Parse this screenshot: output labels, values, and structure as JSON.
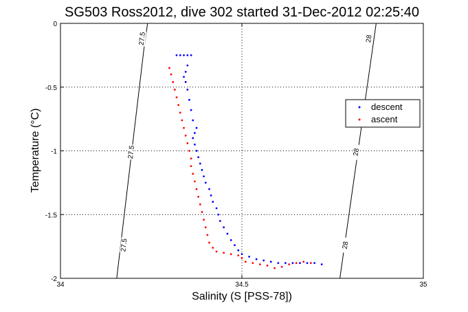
{
  "chart_data": {
    "type": "scatter",
    "title": "SG503 Ross2012, dive 302 started 31-Dec-2012 02:25:40",
    "xlabel": "Salinity (S [PSS-78])",
    "ylabel": "Temperature (°C)",
    "xlim": [
      34,
      35
    ],
    "ylim": [
      -2,
      0
    ],
    "xticks": [
      34,
      34.5,
      35
    ],
    "xtick_labels": [
      "34",
      "34.5",
      "35"
    ],
    "yticks": [
      0,
      -0.5,
      -1,
      -1.5,
      -2
    ],
    "ytick_labels": [
      "0",
      "-0.5",
      "-1",
      "-1.5",
      "-2"
    ],
    "grid": true,
    "legend_position": "right",
    "series": [
      {
        "name": "descent",
        "color": "#0000ff",
        "points": [
          [
            34.32,
            -0.25
          ],
          [
            34.33,
            -0.25
          ],
          [
            34.34,
            -0.25
          ],
          [
            34.35,
            -0.25
          ],
          [
            34.36,
            -0.25
          ],
          [
            34.35,
            -0.33
          ],
          [
            34.345,
            -0.38
          ],
          [
            34.34,
            -0.42
          ],
          [
            34.345,
            -0.46
          ],
          [
            34.35,
            -0.52
          ],
          [
            34.355,
            -0.6
          ],
          [
            34.36,
            -0.68
          ],
          [
            34.365,
            -0.76
          ],
          [
            34.375,
            -0.82
          ],
          [
            34.37,
            -0.86
          ],
          [
            34.365,
            -0.9
          ],
          [
            34.37,
            -0.95
          ],
          [
            34.375,
            -1.0
          ],
          [
            34.38,
            -1.05
          ],
          [
            34.385,
            -1.1
          ],
          [
            34.39,
            -1.15
          ],
          [
            34.395,
            -1.2
          ],
          [
            34.4,
            -1.25
          ],
          [
            34.41,
            -1.3
          ],
          [
            34.415,
            -1.35
          ],
          [
            34.42,
            -1.4
          ],
          [
            34.43,
            -1.45
          ],
          [
            34.435,
            -1.5
          ],
          [
            34.44,
            -1.55
          ],
          [
            34.45,
            -1.6
          ],
          [
            34.46,
            -1.65
          ],
          [
            34.47,
            -1.7
          ],
          [
            34.48,
            -1.74
          ],
          [
            34.49,
            -1.78
          ],
          [
            34.5,
            -1.81
          ],
          [
            34.52,
            -1.83
          ],
          [
            34.54,
            -1.85
          ],
          [
            34.56,
            -1.86
          ],
          [
            34.58,
            -1.87
          ],
          [
            34.6,
            -1.88
          ],
          [
            34.62,
            -1.88
          ],
          [
            34.64,
            -1.88
          ],
          [
            34.66,
            -1.88
          ],
          [
            34.68,
            -1.88
          ],
          [
            34.7,
            -1.88
          ],
          [
            34.72,
            -1.89
          ]
        ]
      },
      {
        "name": "ascent",
        "color": "#ff0000",
        "points": [
          [
            34.3,
            -0.35
          ],
          [
            34.305,
            -0.4
          ],
          [
            34.31,
            -0.46
          ],
          [
            34.315,
            -0.52
          ],
          [
            34.32,
            -0.58
          ],
          [
            34.325,
            -0.64
          ],
          [
            34.33,
            -0.7
          ],
          [
            34.335,
            -0.76
          ],
          [
            34.34,
            -0.82
          ],
          [
            34.345,
            -0.88
          ],
          [
            34.35,
            -0.94
          ],
          [
            34.355,
            -1.0
          ],
          [
            34.36,
            -1.06
          ],
          [
            34.36,
            -1.12
          ],
          [
            34.365,
            -1.18
          ],
          [
            34.37,
            -1.24
          ],
          [
            34.375,
            -1.3
          ],
          [
            34.38,
            -1.36
          ],
          [
            34.385,
            -1.42
          ],
          [
            34.39,
            -1.48
          ],
          [
            34.395,
            -1.54
          ],
          [
            34.4,
            -1.6
          ],
          [
            34.405,
            -1.66
          ],
          [
            34.41,
            -1.72
          ],
          [
            34.42,
            -1.76
          ],
          [
            34.43,
            -1.79
          ],
          [
            34.45,
            -1.8
          ],
          [
            34.47,
            -1.81
          ],
          [
            34.49,
            -1.82
          ],
          [
            34.5,
            -1.84
          ],
          [
            34.51,
            -1.87
          ],
          [
            34.53,
            -1.88
          ],
          [
            34.55,
            -1.89
          ],
          [
            34.57,
            -1.9
          ],
          [
            34.59,
            -1.92
          ],
          [
            34.61,
            -1.91
          ],
          [
            34.63,
            -1.89
          ],
          [
            34.65,
            -1.88
          ],
          [
            34.67,
            -1.87
          ],
          [
            34.69,
            -1.88
          ]
        ]
      }
    ],
    "contours": [
      {
        "label": "27.5",
        "points": [
          [
            34.155,
            -2.0
          ],
          [
            34.23,
            -0.2
          ],
          [
            34.24,
            0.0
          ]
        ],
        "label_positions": [
          [
            34.175,
            -1.74
          ],
          [
            34.195,
            -1.01
          ],
          [
            34.225,
            -0.12
          ]
        ]
      },
      {
        "label": "28",
        "points": [
          [
            34.77,
            -2.0
          ],
          [
            34.86,
            -0.2
          ],
          [
            34.87,
            0.0
          ]
        ],
        "label_positions": [
          [
            34.785,
            -1.74
          ],
          [
            34.815,
            -1.01
          ],
          [
            34.85,
            -0.12
          ]
        ]
      }
    ]
  }
}
